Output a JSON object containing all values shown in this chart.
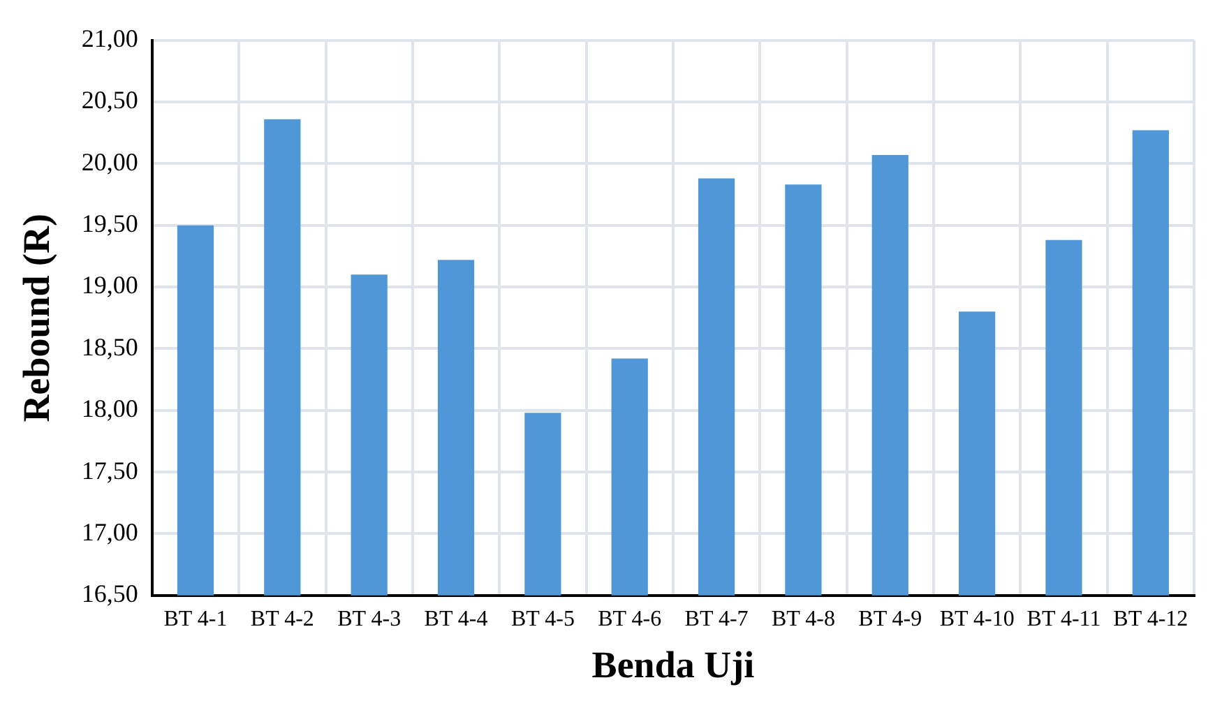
{
  "chart_data": {
    "type": "bar",
    "xlabel": "Benda Uji",
    "ylabel": "Rebound (R)",
    "categories": [
      "BT 4-1",
      "BT 4-2",
      "BT 4-3",
      "BT 4-4",
      "BT 4-5",
      "BT 4-6",
      "BT 4-7",
      "BT 4-8",
      "BT 4-9",
      "BT 4-10",
      "BT 4-11",
      "BT 4-12"
    ],
    "values": [
      19.5,
      20.36,
      19.1,
      19.22,
      17.98,
      18.42,
      19.88,
      19.83,
      20.07,
      18.8,
      19.38,
      20.27
    ],
    "color": "#5097d8",
    "ylim": [
      16.5,
      21
    ],
    "yticks": [
      {
        "value": 16.5,
        "label": "16,50"
      },
      {
        "value": 17,
        "label": "17,00"
      },
      {
        "value": 17.5,
        "label": "17,50"
      },
      {
        "value": 18,
        "label": "18,00"
      },
      {
        "value": 18.5,
        "label": "18,50"
      },
      {
        "value": 19,
        "label": "19,00"
      },
      {
        "value": 19.5,
        "label": "19,50"
      },
      {
        "value": 20,
        "label": "20,00"
      },
      {
        "value": 20.5,
        "label": "20,50"
      },
      {
        "value": 21,
        "label": "21,00"
      }
    ],
    "grid": true,
    "legend": false
  }
}
